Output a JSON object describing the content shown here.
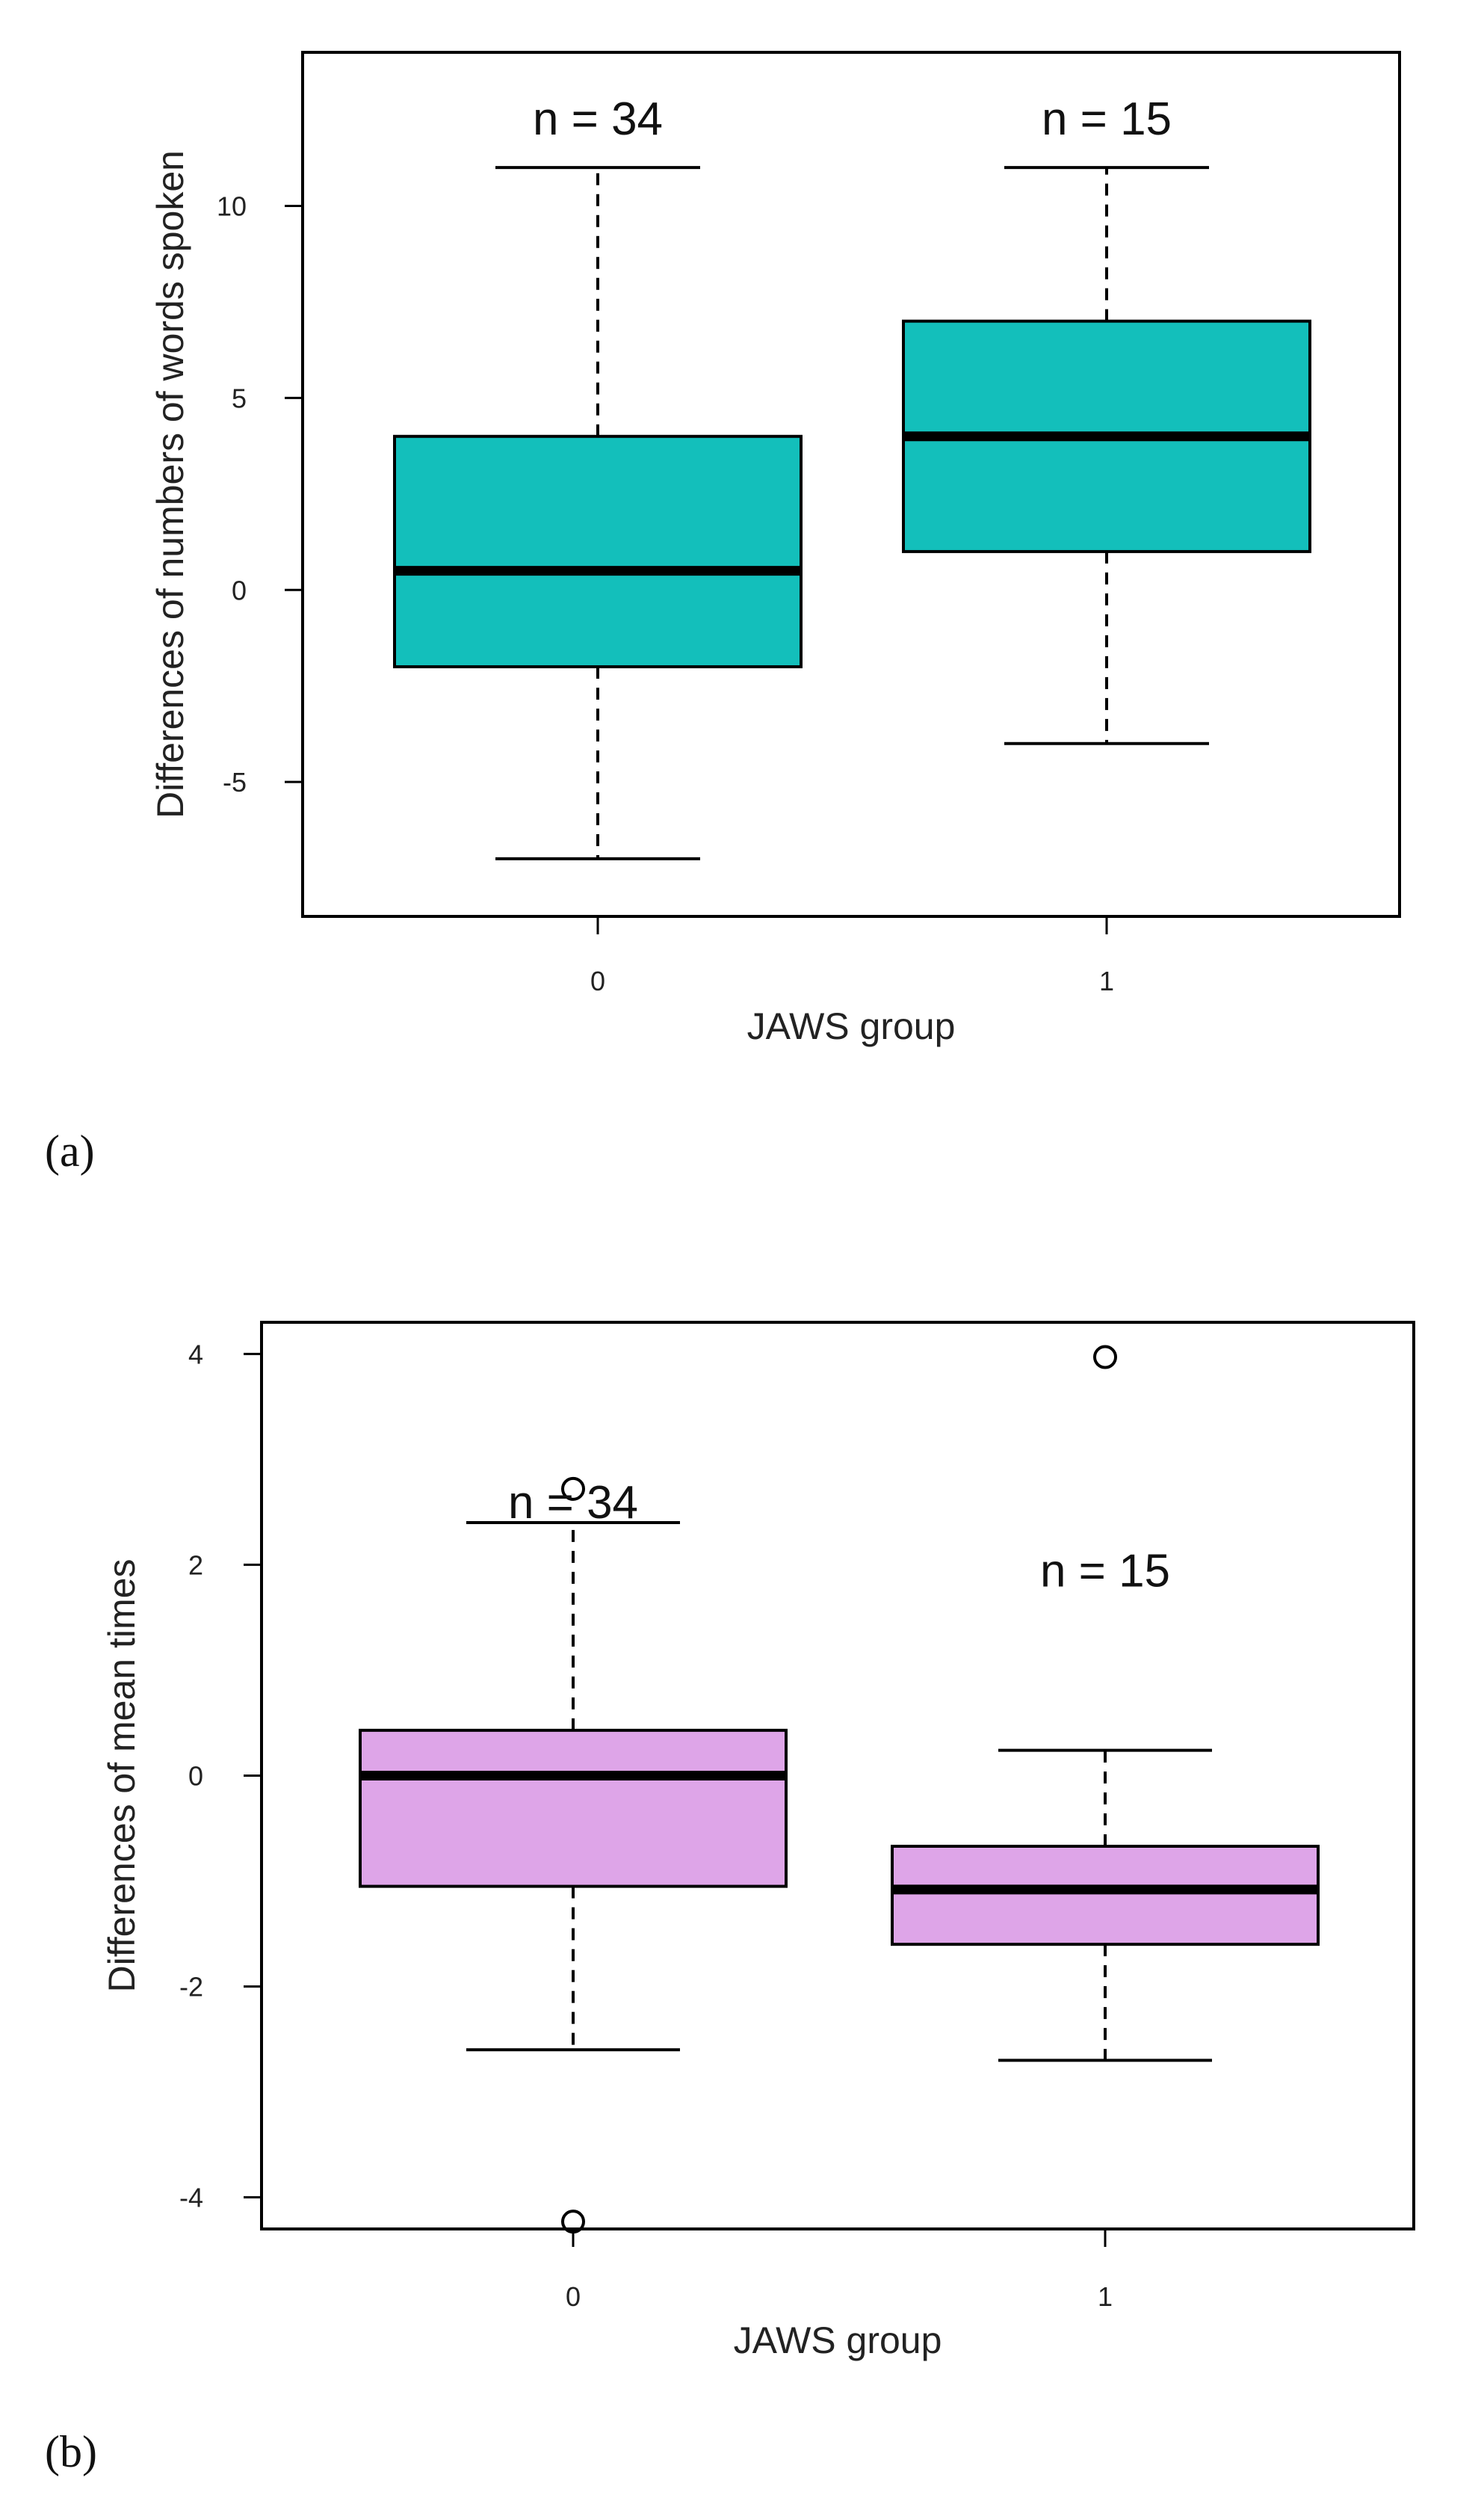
{
  "chart_data": [
    {
      "type": "box",
      "panel_label": "(a)",
      "xlabel": "JAWS group",
      "ylabel": "Differences of numbers of words spoken",
      "ylim": [
        -8.5,
        14
      ],
      "yticks": [
        -5,
        0,
        5,
        10
      ],
      "ytick_labels": [
        "-5",
        "0",
        "5",
        "10"
      ],
      "fill_color": "#13bfbb",
      "grid": false,
      "groups": [
        {
          "category": "0",
          "n_label": "n = 34",
          "whisker_low": -7,
          "q1": -2,
          "median": 0.5,
          "q3": 4,
          "whisker_high": 11,
          "outliers": []
        },
        {
          "category": "1",
          "n_label": "n = 15",
          "whisker_low": -4,
          "q1": 1,
          "median": 4,
          "q3": 7,
          "whisker_high": 11,
          "outliers": []
        }
      ]
    },
    {
      "type": "box",
      "panel_label": "(b)",
      "xlabel": "JAWS group",
      "ylabel": "Differences of mean times",
      "ylim": [
        -4.3,
        4.3
      ],
      "yticks": [
        -4,
        -2,
        0,
        2,
        4
      ],
      "ytick_labels": [
        "-4",
        "-2",
        "0",
        "2",
        "4"
      ],
      "fill_color": "#dea5e8",
      "grid": false,
      "groups": [
        {
          "category": "0",
          "n_label": "n = 34",
          "whisker_low": -2.6,
          "q1": -1.05,
          "median": 0,
          "q3": 0.43,
          "whisker_high": 2.4,
          "outliers": [
            2.72,
            -4.23
          ],
          "n_label_y": 2.6
        },
        {
          "category": "1",
          "n_label": "n = 15",
          "whisker_low": -2.7,
          "q1": -1.6,
          "median": -1.08,
          "q3": -0.67,
          "whisker_high": 0.24,
          "outliers": [
            3.97
          ],
          "n_label_y": 1.95
        }
      ]
    }
  ]
}
